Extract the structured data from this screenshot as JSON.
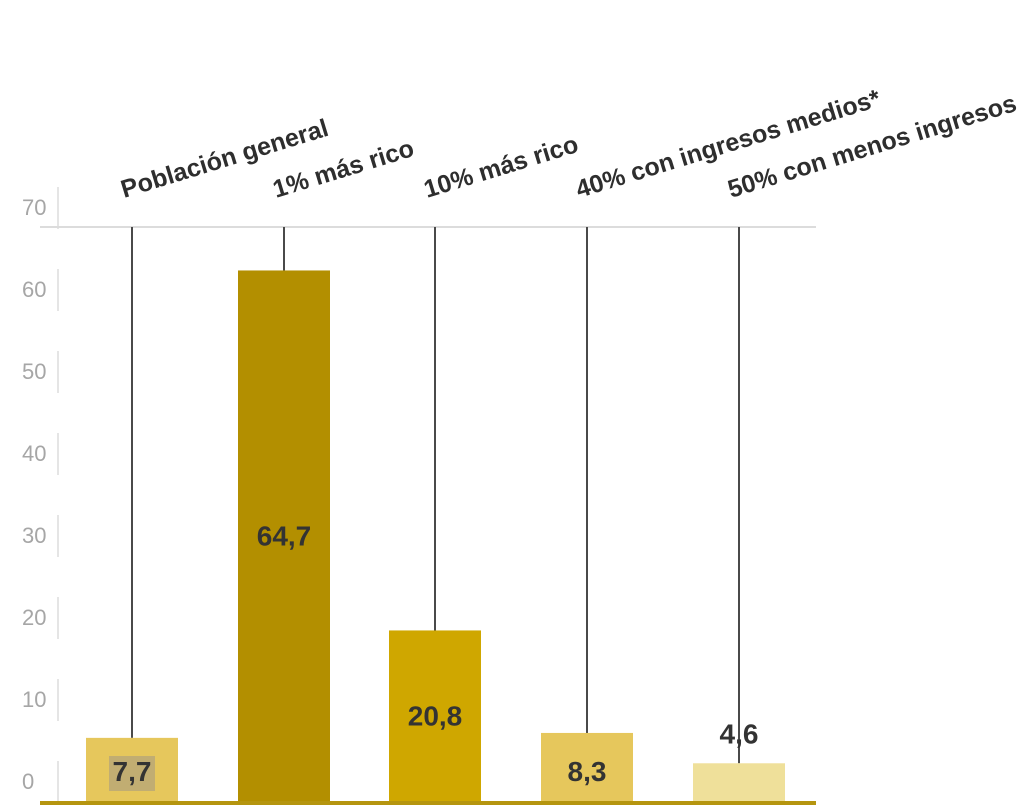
{
  "chart_data": {
    "type": "bar",
    "categories": [
      "Población general",
      "1% más rico",
      "10% más rico",
      "40% con ingresos medios*",
      "50% con menos ingresos"
    ],
    "values": [
      7.7,
      64.7,
      20.8,
      8.3,
      4.6
    ],
    "value_labels": [
      "7,7",
      "64,7",
      "20,8",
      "8,3",
      "4,6"
    ],
    "y_ticks": [
      "0",
      "10",
      "20",
      "30",
      "40",
      "50",
      "60",
      "70"
    ],
    "ylim": [
      0,
      70
    ],
    "grid": false,
    "colors": [
      "#e6c75c",
      "#b38f00",
      "#cfa700",
      "#e6c75c",
      "#efe09a"
    ],
    "axis_color": "#b5950f",
    "stem_color": "#4a4a4a",
    "label_highlight": "#c1ad72"
  }
}
